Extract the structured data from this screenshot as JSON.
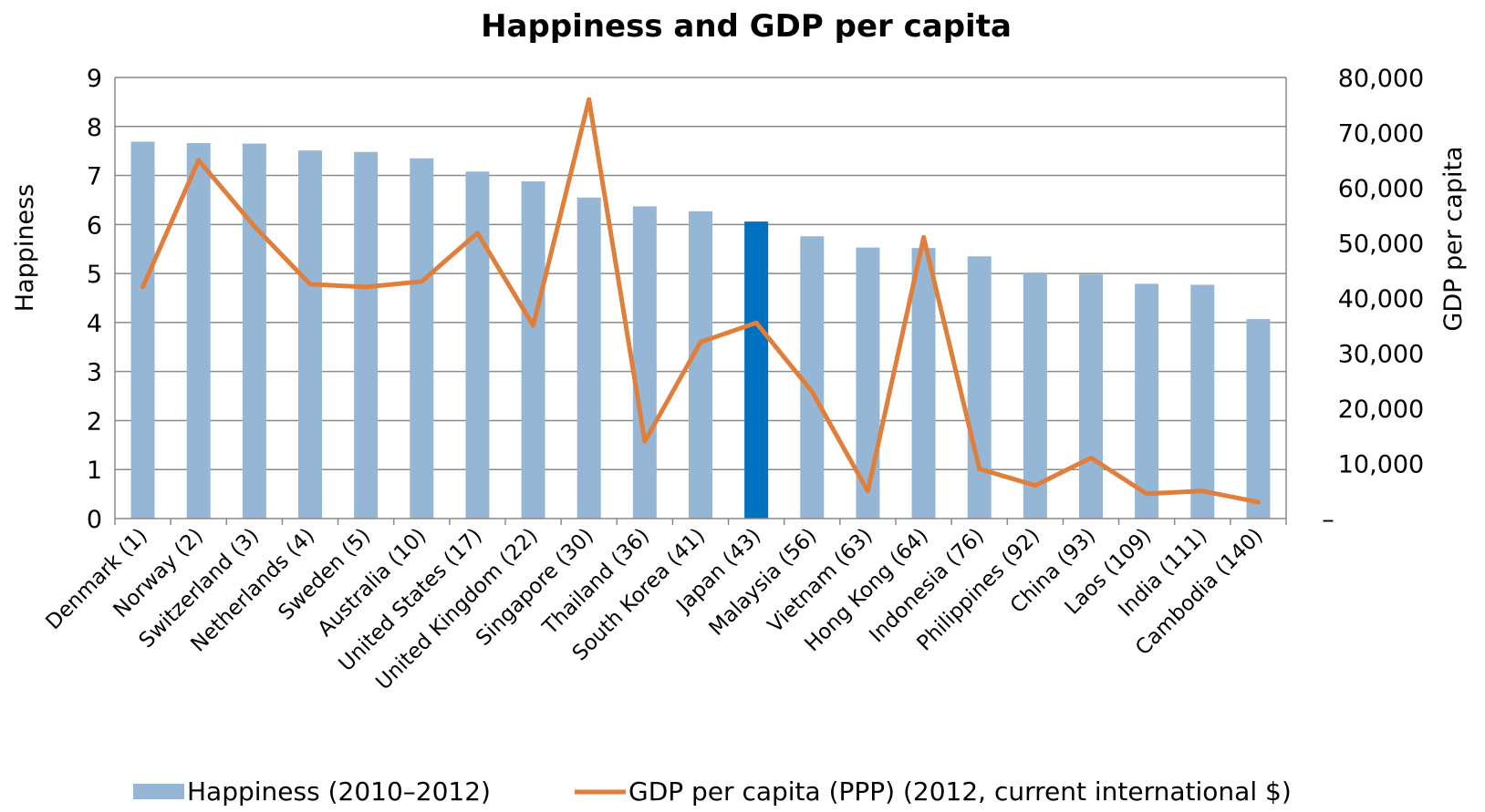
{
  "chart_data": {
    "type": "bar",
    "title": "Happiness and GDP per capita",
    "ylabel": "Happiness",
    "y2label": "GDP per capita",
    "ylim": [
      0,
      9
    ],
    "y2lim": [
      0,
      80000
    ],
    "yticks": [
      "0",
      "1",
      "2",
      "3",
      "4",
      "5",
      "6",
      "7",
      "8",
      "9"
    ],
    "y2ticks": [
      "–",
      "10,000",
      "20,000",
      "30,000",
      "40,000",
      "50,000",
      "60,000",
      "70,000",
      "80,000"
    ],
    "grid": true,
    "legend_position": "bottom",
    "categories": [
      "Denmark (1)",
      "Norway (2)",
      "Switzerland (3)",
      "Netherlands (4)",
      "Sweden (5)",
      "Australia (10)",
      "United States (17)",
      "United Kingdom (22)",
      "Singapore (30)",
      "Thailand (36)",
      "South Korea (41)",
      "Japan (43)",
      "Malaysia (56)",
      "Vietnam (63)",
      "Hong Kong (64)",
      "Indonesia (76)",
      "Philippines (92)",
      "China (93)",
      "Laos (109)",
      "India (111)",
      "Cambodia (140)"
    ],
    "highlight_category": "Japan (43)",
    "series": [
      {
        "name": "Happiness (2010–2012)",
        "type": "bar",
        "axis": "left",
        "color": "#95b6d5",
        "values": [
          7.69,
          7.66,
          7.65,
          7.51,
          7.48,
          7.35,
          7.08,
          6.88,
          6.55,
          6.37,
          6.27,
          6.06,
          5.76,
          5.53,
          5.52,
          5.35,
          5.0,
          4.98,
          4.79,
          4.77,
          4.07
        ]
      },
      {
        "name": "GDP per capita (PPP) (2012, current international $)",
        "type": "line",
        "axis": "right",
        "color": "#e07f3b",
        "values": [
          42000,
          65000,
          53000,
          42500,
          42000,
          43000,
          51800,
          35000,
          76000,
          14000,
          32000,
          35500,
          23000,
          5000,
          51000,
          9000,
          6000,
          11000,
          4500,
          5000,
          3000
        ]
      }
    ],
    "colors": {
      "bar": "#95b6d5",
      "highlight_bar": "#0070c0",
      "line": "#e07f3b",
      "grid": "#8a8a8a"
    }
  }
}
